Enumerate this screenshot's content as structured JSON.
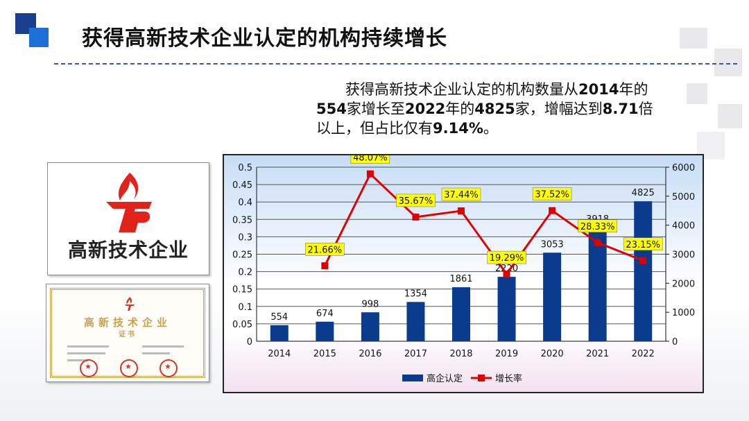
{
  "slide": {
    "title": "获得高新技术企业认定的机构持续增长",
    "description_parts": [
      {
        "text": "获得高新技术企业认定的机构数量从",
        "bold": false
      },
      {
        "text": "2014",
        "bold": true
      },
      {
        "text": "年的",
        "bold": false
      },
      {
        "text": "554",
        "bold": true
      },
      {
        "text": "家增长至",
        "bold": false
      },
      {
        "text": "2022",
        "bold": true
      },
      {
        "text": "年的",
        "bold": false
      },
      {
        "text": "4825",
        "bold": true
      },
      {
        "text": "家，增幅达到",
        "bold": false
      },
      {
        "text": "8.71",
        "bold": true
      },
      {
        "text": "倍以上，但占比仅有",
        "bold": false
      },
      {
        "text": "9.14%",
        "bold": true
      },
      {
        "text": "。",
        "bold": false
      }
    ],
    "logo_text": "高新技术企业",
    "certificate_title": "高新技术企业",
    "certificate_subtitle": "证书"
  },
  "colors": {
    "bar": "#0a3b8c",
    "line": "#e00000",
    "label_bg": "#ffff00",
    "accent_dark": "#1b3f8f",
    "accent_light": "#1e6fd6",
    "logo_red": "#e0241b"
  },
  "chart_data": {
    "type": "bar",
    "categories": [
      "2014",
      "2015",
      "2016",
      "2017",
      "2018",
      "2019",
      "2020",
      "2021",
      "2022"
    ],
    "series": [
      {
        "name": "高企认定",
        "type": "bar",
        "axis": "right",
        "values": [
          554,
          674,
          998,
          1354,
          1861,
          2220,
          3053,
          3918,
          4825
        ],
        "labels": [
          "554",
          "674",
          "998",
          "1354",
          "1861",
          "2220",
          "3053",
          "3918",
          "4825"
        ]
      },
      {
        "name": "增长率",
        "type": "line",
        "axis": "left",
        "values": [
          null,
          0.2166,
          0.4807,
          0.3567,
          0.3744,
          0.1929,
          0.3752,
          0.2833,
          0.2315
        ],
        "labels": [
          "",
          "21.66%",
          "48.07%",
          "35.67%",
          "37.44%",
          "19.29%",
          "37.52%",
          "28.33%",
          "23.15%"
        ]
      }
    ],
    "left_axis": {
      "min": 0,
      "max": 0.5,
      "ticks": [
        "0",
        "0.05",
        "0.1",
        "0.15",
        "0.2",
        "0.25",
        "0.3",
        "0.35",
        "0.4",
        "0.45",
        "0.5"
      ]
    },
    "right_axis": {
      "min": 0,
      "max": 6000,
      "ticks": [
        "0",
        "1000",
        "2000",
        "3000",
        "4000",
        "5000",
        "6000"
      ]
    },
    "grid": true,
    "legend": "bottom"
  }
}
